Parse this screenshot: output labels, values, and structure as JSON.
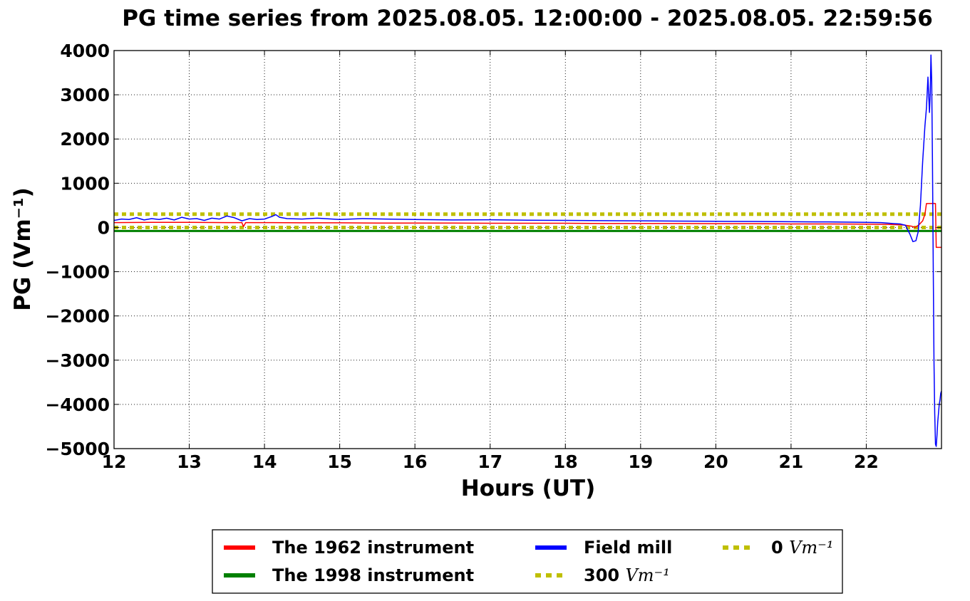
{
  "chart_data": {
    "type": "line",
    "title": "PG time series from 2025.08.05. 12:00:00 - 2025.08.05. 22:59:56",
    "xlabel": "Hours (UT)",
    "ylabel": "PG (Vm⁻¹)",
    "xlim": [
      12,
      23
    ],
    "ylim": [
      -5000,
      4000
    ],
    "xticks": [
      12,
      13,
      14,
      15,
      16,
      17,
      18,
      19,
      20,
      21,
      22
    ],
    "yticks": [
      4000,
      3000,
      2000,
      1000,
      0,
      -1000,
      -2000,
      -3000,
      -4000,
      -5000
    ],
    "ytick_labels": [
      "4000",
      "3000",
      "2000",
      "1000",
      "0",
      "−1000",
      "−2000",
      "−3000",
      "−4000",
      "−5000"
    ],
    "grid": true,
    "legend_position": "bottom",
    "series": [
      {
        "name": "The 1962 instrument",
        "color": "#ff0000",
        "style": "solid",
        "x": [
          12.0,
          12.5,
          13.0,
          13.5,
          13.7,
          13.72,
          13.75,
          14.0,
          14.5,
          15.0,
          15.5,
          16.0,
          16.5,
          17.0,
          17.5,
          18.0,
          18.5,
          19.0,
          19.5,
          20.0,
          20.5,
          21.0,
          21.5,
          22.0,
          22.3,
          22.5,
          22.6,
          22.65,
          22.7,
          22.75,
          22.78,
          22.8,
          22.9,
          22.92,
          22.93,
          22.999
        ],
        "y": [
          110,
          115,
          115,
          110,
          110,
          20,
          110,
          110,
          105,
          105,
          100,
          100,
          100,
          95,
          95,
          95,
          90,
          90,
          90,
          85,
          85,
          80,
          80,
          75,
          70,
          55,
          30,
          0,
          60,
          150,
          300,
          540,
          545,
          540,
          -450,
          -450
        ]
      },
      {
        "name": "The 1998 instrument",
        "color": "#008000",
        "style": "solid",
        "x": [
          12.0,
          22.999
        ],
        "y": [
          -80,
          -80
        ]
      },
      {
        "name": "Field mill",
        "color": "#0000ff",
        "style": "solid",
        "x": [
          12.0,
          12.1,
          12.2,
          12.3,
          12.4,
          12.5,
          12.6,
          12.7,
          12.8,
          12.9,
          13.0,
          13.1,
          13.2,
          13.3,
          13.4,
          13.5,
          13.6,
          13.7,
          13.8,
          13.9,
          14.0,
          14.1,
          14.15,
          14.2,
          14.3,
          14.5,
          14.7,
          15.0,
          15.3,
          15.6,
          16.0,
          16.5,
          17.0,
          17.5,
          18.0,
          18.5,
          19.0,
          19.5,
          20.0,
          20.5,
          21.0,
          21.5,
          22.0,
          22.2,
          22.35,
          22.45,
          22.52,
          22.58,
          22.62,
          22.66,
          22.69,
          22.72,
          22.75,
          22.78,
          22.8,
          22.82,
          22.84,
          22.85,
          22.86,
          22.87,
          22.88,
          22.89,
          22.9,
          22.91,
          22.92,
          22.93,
          22.94,
          22.95,
          22.96,
          22.97,
          22.98,
          22.99,
          22.999
        ],
        "y": [
          160,
          190,
          180,
          220,
          170,
          200,
          180,
          210,
          170,
          230,
          190,
          200,
          160,
          210,
          190,
          260,
          220,
          150,
          200,
          180,
          190,
          250,
          290,
          230,
          200,
          190,
          210,
          180,
          200,
          190,
          180,
          170,
          175,
          165,
          160,
          155,
          150,
          145,
          140,
          135,
          130,
          125,
          115,
          110,
          90,
          80,
          50,
          -150,
          -320,
          -300,
          -100,
          500,
          1500,
          2300,
          2700,
          3400,
          2600,
          3000,
          3900,
          3300,
          1500,
          -800,
          -3000,
          -4200,
          -4900,
          -4950,
          -4700,
          -4400,
          -4200,
          -4000,
          -3900,
          -3750,
          -3700
        ]
      },
      {
        "name": "300 Vm⁻¹",
        "color": "#bfbf00",
        "style": "dotted",
        "x": [
          12.0,
          22.999
        ],
        "y": [
          300,
          300
        ]
      },
      {
        "name": "0 Vm⁻¹",
        "color": "#bfbf00",
        "style": "dotted",
        "x": [
          12.0,
          22.999
        ],
        "y": [
          0,
          0
        ]
      }
    ],
    "legend": [
      {
        "series": 0,
        "label": "The 1962 instrument",
        "unit": ""
      },
      {
        "series": 2,
        "label": "Field mill",
        "unit": ""
      },
      {
        "series": 4,
        "label": "0 ",
        "unit": "Vm⁻¹"
      },
      {
        "series": 1,
        "label": "The 1998 instrument",
        "unit": ""
      },
      {
        "series": 3,
        "label": "300 ",
        "unit": "Vm⁻¹"
      }
    ]
  }
}
